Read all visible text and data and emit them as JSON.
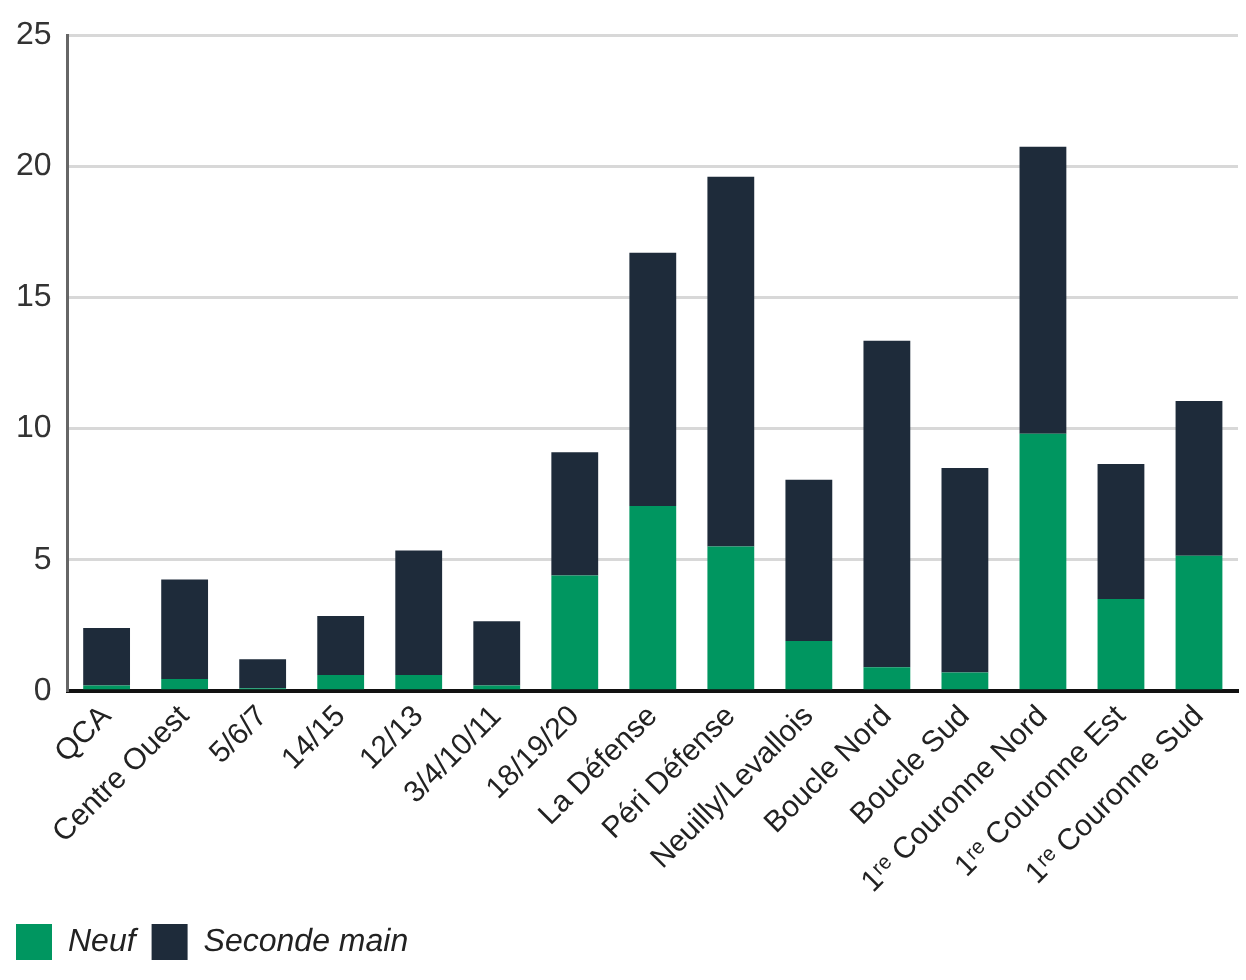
{
  "chart_data": {
    "type": "bar",
    "stacked": true,
    "categories": [
      "QCA",
      "Centre Ouest",
      "5/6/7",
      "14/15",
      "12/13",
      "3/4/10/11",
      "18/19/20",
      "La Défense",
      "Péri Défense",
      "Neuilly/Levallois",
      "Boucle Nord",
      "Boucle Sud",
      "1ʳᵉ Couronne Nord",
      "1ʳᵉ Couronne Est",
      "1ʳᵉ Couronne Sud"
    ],
    "series": [
      {
        "name": "Neuf",
        "color": "#009660",
        "values": [
          0.2,
          0.45,
          0.1,
          0.6,
          0.6,
          0.2,
          4.4,
          7.05,
          5.5,
          1.9,
          0.9,
          0.7,
          9.8,
          3.5,
          5.15
        ]
      },
      {
        "name": "Seconde main",
        "color": "#1e2b3a",
        "values": [
          2.2,
          3.8,
          1.1,
          2.25,
          4.75,
          2.45,
          4.7,
          9.65,
          14.1,
          6.15,
          12.45,
          7.8,
          10.95,
          5.15,
          5.9
        ]
      }
    ],
    "ylim": [
      0,
      25
    ],
    "yticks": [
      0,
      5,
      10,
      15,
      20,
      25
    ],
    "grid": "y",
    "legend": "bottom left"
  }
}
